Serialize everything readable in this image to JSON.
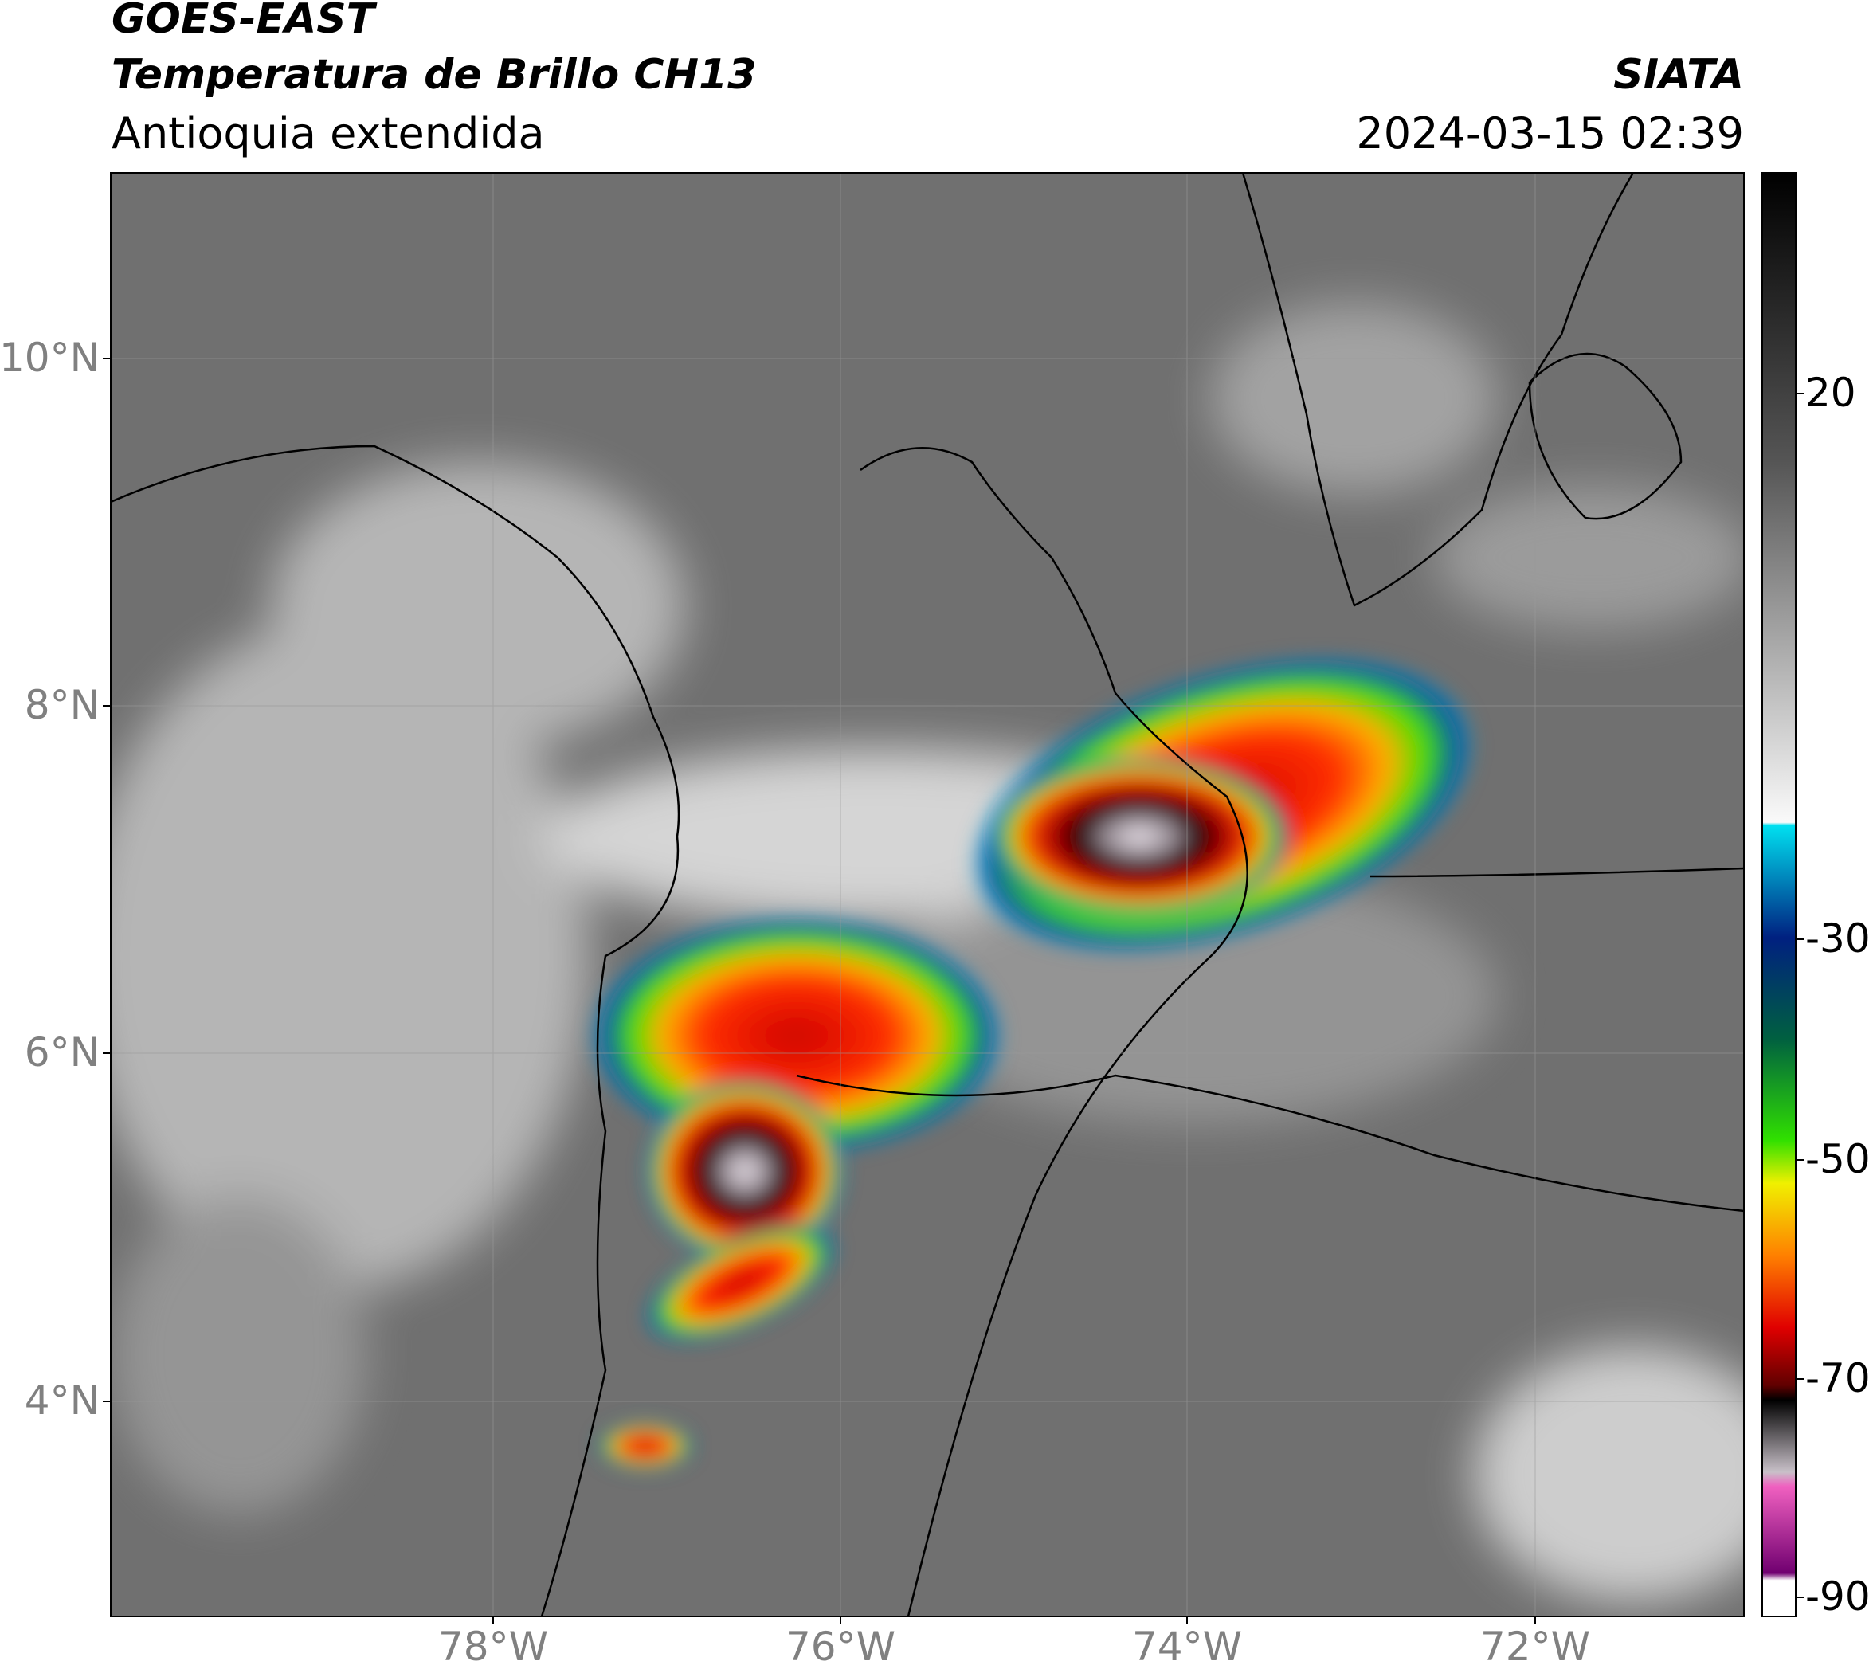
{
  "header": {
    "title": "GOES-EAST",
    "subtitle": "Temperatura de Brillo CH13",
    "region": "Antioquia extendida",
    "source": "SIATA",
    "datetime": "2024-03-15 02:39"
  },
  "map": {
    "lat_labels": [
      "10°N",
      "8°N",
      "6°N",
      "4°N"
    ],
    "lon_labels": [
      "78°W",
      "76°W",
      "74°W",
      "72°W"
    ]
  },
  "colorbar": {
    "ticks": [
      20,
      -30,
      -50,
      -70,
      -90
    ]
  }
}
